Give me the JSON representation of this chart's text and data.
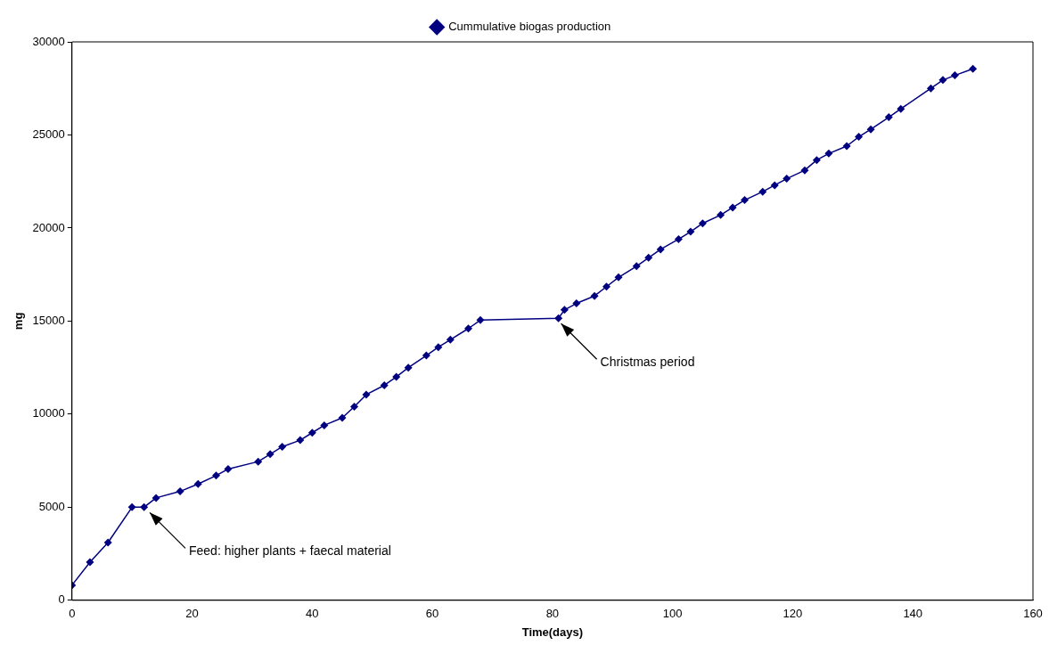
{
  "chart_data": {
    "type": "line",
    "xlabel": "Time(days)",
    "ylabel": "mg",
    "x": [
      0,
      3,
      6,
      10,
      12,
      14,
      18,
      21,
      24,
      26,
      31,
      33,
      35,
      38,
      40,
      42,
      45,
      47,
      49,
      52,
      54,
      56,
      59,
      61,
      63,
      66,
      68,
      81,
      82,
      84,
      87,
      89,
      91,
      94,
      96,
      98,
      101,
      103,
      105,
      108,
      110,
      112,
      115,
      117,
      119,
      122,
      124,
      126,
      129,
      131,
      133,
      136,
      138,
      143,
      145,
      147,
      150
    ],
    "series": [
      {
        "name": "Cummulative biogas production",
        "color": "#000080",
        "values": [
          810,
          2050,
          3100,
          5000,
          5000,
          5500,
          5850,
          6250,
          6700,
          7050,
          7450,
          7850,
          8250,
          8600,
          9000,
          9400,
          9800,
          10400,
          11050,
          11550,
          12000,
          12500,
          13150,
          13600,
          14000,
          14600,
          15050,
          15150,
          15600,
          15950,
          16350,
          16850,
          17350,
          17950,
          18400,
          18850,
          19400,
          19800,
          20250,
          20700,
          21100,
          21500,
          21950,
          22300,
          22650,
          23100,
          23650,
          24000,
          24400,
          24900,
          25300,
          25950,
          26400,
          27500,
          27950,
          28200,
          28550
        ]
      }
    ],
    "xlim": [
      0,
      160
    ],
    "xticks": [
      0,
      20,
      40,
      60,
      80,
      100,
      120,
      140,
      160
    ],
    "ylim": [
      0,
      30000
    ],
    "yticks": [
      0,
      5000,
      10000,
      15000,
      20000,
      25000,
      30000
    ],
    "grid": false,
    "legend": "top",
    "marker": "diamond",
    "line_style": "solid",
    "annotations": [
      {
        "text": "Feed: higher plants + faecal material",
        "x": 12.5,
        "y": 5000
      },
      {
        "text": "Christmas period",
        "x": 81,
        "y": 15150
      }
    ]
  }
}
